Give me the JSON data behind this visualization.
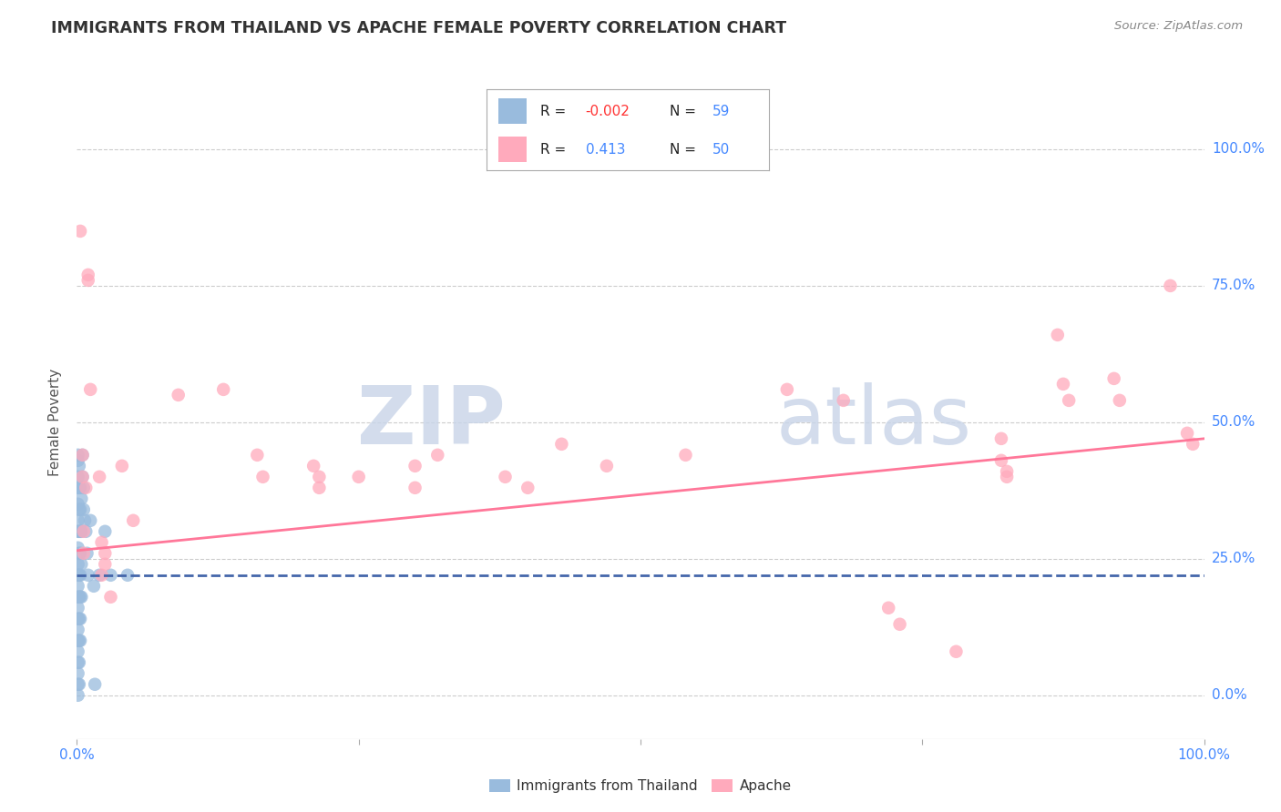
{
  "title": "IMMIGRANTS FROM THAILAND VS APACHE FEMALE POVERTY CORRELATION CHART",
  "source": "Source: ZipAtlas.com",
  "ylabel": "Female Poverty",
  "xlim": [
    0.0,
    1.0
  ],
  "ylim": [
    -0.08,
    1.08
  ],
  "ytick_labels": [
    "0.0%",
    "25.0%",
    "50.0%",
    "75.0%",
    "100.0%"
  ],
  "ytick_values": [
    0.0,
    0.25,
    0.5,
    0.75,
    1.0
  ],
  "color_blue": "#99BBDD",
  "color_pink": "#FFAABC",
  "line_blue": "#4466AA",
  "line_pink": "#FF7799",
  "watermark_zip": "ZIP",
  "watermark_atlas": "atlas",
  "background": "#FFFFFF",
  "blue_scatter": [
    [
      0.001,
      0.43
    ],
    [
      0.001,
      0.44
    ],
    [
      0.001,
      0.4
    ],
    [
      0.001,
      0.38
    ],
    [
      0.001,
      0.35
    ],
    [
      0.001,
      0.32
    ],
    [
      0.001,
      0.3
    ],
    [
      0.001,
      0.27
    ],
    [
      0.001,
      0.24
    ],
    [
      0.001,
      0.22
    ],
    [
      0.001,
      0.2
    ],
    [
      0.001,
      0.18
    ],
    [
      0.001,
      0.16
    ],
    [
      0.001,
      0.14
    ],
    [
      0.001,
      0.12
    ],
    [
      0.001,
      0.1
    ],
    [
      0.001,
      0.08
    ],
    [
      0.001,
      0.06
    ],
    [
      0.001,
      0.04
    ],
    [
      0.001,
      0.02
    ],
    [
      0.001,
      0.0
    ],
    [
      0.002,
      0.42
    ],
    [
      0.002,
      0.38
    ],
    [
      0.002,
      0.34
    ],
    [
      0.002,
      0.3
    ],
    [
      0.002,
      0.26
    ],
    [
      0.002,
      0.22
    ],
    [
      0.002,
      0.18
    ],
    [
      0.002,
      0.14
    ],
    [
      0.002,
      0.1
    ],
    [
      0.002,
      0.06
    ],
    [
      0.002,
      0.02
    ],
    [
      0.003,
      0.38
    ],
    [
      0.003,
      0.34
    ],
    [
      0.003,
      0.3
    ],
    [
      0.003,
      0.26
    ],
    [
      0.003,
      0.22
    ],
    [
      0.003,
      0.18
    ],
    [
      0.003,
      0.14
    ],
    [
      0.003,
      0.1
    ],
    [
      0.004,
      0.36
    ],
    [
      0.004,
      0.3
    ],
    [
      0.004,
      0.24
    ],
    [
      0.004,
      0.18
    ],
    [
      0.005,
      0.44
    ],
    [
      0.005,
      0.4
    ],
    [
      0.006,
      0.38
    ],
    [
      0.006,
      0.34
    ],
    [
      0.007,
      0.32
    ],
    [
      0.008,
      0.3
    ],
    [
      0.009,
      0.26
    ],
    [
      0.01,
      0.22
    ],
    [
      0.012,
      0.32
    ],
    [
      0.015,
      0.2
    ],
    [
      0.016,
      0.02
    ],
    [
      0.02,
      0.22
    ],
    [
      0.025,
      0.3
    ],
    [
      0.03,
      0.22
    ],
    [
      0.045,
      0.22
    ]
  ],
  "pink_scatter": [
    [
      0.003,
      0.85
    ],
    [
      0.005,
      0.44
    ],
    [
      0.005,
      0.4
    ],
    [
      0.006,
      0.3
    ],
    [
      0.006,
      0.26
    ],
    [
      0.008,
      0.38
    ],
    [
      0.01,
      0.76
    ],
    [
      0.01,
      0.77
    ],
    [
      0.012,
      0.56
    ],
    [
      0.02,
      0.4
    ],
    [
      0.022,
      0.28
    ],
    [
      0.022,
      0.22
    ],
    [
      0.025,
      0.26
    ],
    [
      0.025,
      0.24
    ],
    [
      0.03,
      0.18
    ],
    [
      0.04,
      0.42
    ],
    [
      0.05,
      0.32
    ],
    [
      0.09,
      0.55
    ],
    [
      0.13,
      0.56
    ],
    [
      0.16,
      0.44
    ],
    [
      0.165,
      0.4
    ],
    [
      0.21,
      0.42
    ],
    [
      0.215,
      0.4
    ],
    [
      0.215,
      0.38
    ],
    [
      0.25,
      0.4
    ],
    [
      0.3,
      0.42
    ],
    [
      0.3,
      0.38
    ],
    [
      0.32,
      0.44
    ],
    [
      0.38,
      0.4
    ],
    [
      0.4,
      0.38
    ],
    [
      0.43,
      0.46
    ],
    [
      0.47,
      0.42
    ],
    [
      0.54,
      0.44
    ],
    [
      0.63,
      0.56
    ],
    [
      0.68,
      0.54
    ],
    [
      0.72,
      0.16
    ],
    [
      0.73,
      0.13
    ],
    [
      0.78,
      0.08
    ],
    [
      0.82,
      0.47
    ],
    [
      0.82,
      0.43
    ],
    [
      0.825,
      0.41
    ],
    [
      0.825,
      0.4
    ],
    [
      0.87,
      0.66
    ],
    [
      0.875,
      0.57
    ],
    [
      0.88,
      0.54
    ],
    [
      0.92,
      0.58
    ],
    [
      0.925,
      0.54
    ],
    [
      0.97,
      0.75
    ],
    [
      0.985,
      0.48
    ],
    [
      0.99,
      0.46
    ]
  ],
  "blue_line_x": [
    0.0,
    1.0
  ],
  "blue_line_y": [
    0.22,
    0.22
  ],
  "pink_line_x": [
    0.0,
    1.0
  ],
  "pink_line_y": [
    0.265,
    0.47
  ]
}
